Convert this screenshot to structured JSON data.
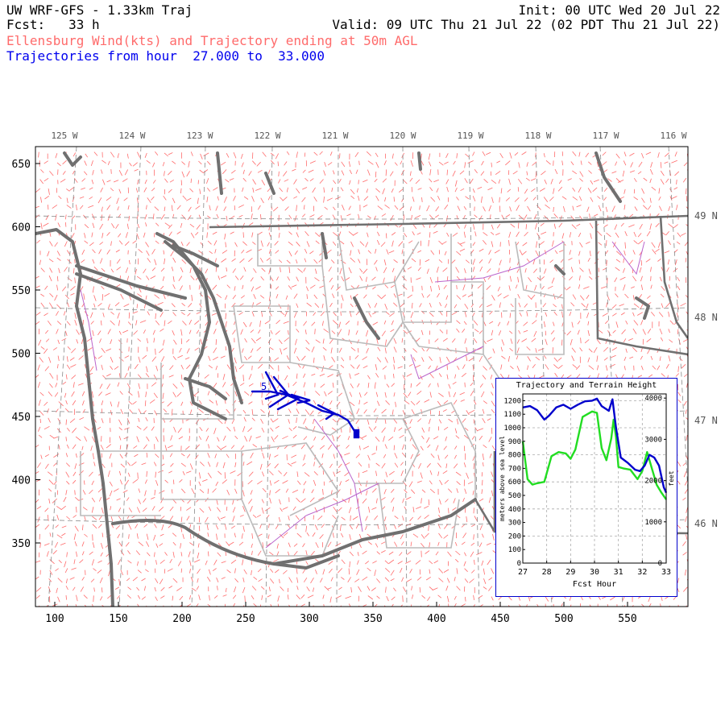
{
  "header": {
    "title": "UW WRF-GFS - 1.33km Traj",
    "init": "Init: 00 UTC Wed 20 Jul 22",
    "fcst": "Fcst:   33 h",
    "valid": "Valid: 09 UTC Thu 21 Jul 22 (02 PDT Thu 21 Jul 22)",
    "subtitle": "Ellensburg Wind(kts) and Trajectory ending at 50m AGL",
    "traj_hours": "Trajectories from hour  27.000 to  33.000"
  },
  "map": {
    "x_ticks": [
      "100",
      "150",
      "200",
      "250",
      "300",
      "350",
      "400",
      "450",
      "500",
      "550"
    ],
    "y_ticks": [
      "650",
      "600",
      "550",
      "500",
      "450",
      "400",
      "350"
    ],
    "lon_labels": [
      "125 W",
      "124 W",
      "123 W",
      "122 W",
      "121 W",
      "120 W",
      "119 W",
      "118 W",
      "117 W",
      "116 W"
    ],
    "lat_labels": [
      "49 N",
      "48 N",
      "47 N",
      "46 N"
    ],
    "traj_start_label": "5",
    "colors": {
      "wind": "#ff6b6b",
      "coast": "#707070",
      "borders": "#bbbbbb",
      "rivers": "#bb66cc",
      "trajectory": "#0000cc"
    }
  },
  "inset": {
    "title": "Trajectory and Terrain Height",
    "left_axis_label": "meters above sea level",
    "right_axis_label": "feet",
    "x_label": "Fcst Hour",
    "x_ticks": [
      "27",
      "28",
      "29",
      "30",
      "31",
      "32",
      "33"
    ],
    "y_ticks_m": [
      "1200",
      "1100",
      "1000",
      "900",
      "800",
      "700",
      "600",
      "500",
      "400",
      "300",
      "200",
      "100",
      "0"
    ],
    "y_ticks_ft": [
      "4000",
      "3000",
      "2000",
      "1000",
      "0"
    ],
    "colors": {
      "trajectory": "#0000cc",
      "terrain": "#22dd22"
    }
  },
  "chart_data": {
    "type": "line",
    "title": "Trajectory and Terrain Height",
    "xlabel": "Fcst Hour",
    "ylabel": "meters above sea level",
    "ylabel_right": "feet",
    "xlim": [
      27,
      33
    ],
    "ylim": [
      0,
      1250
    ],
    "grid": true,
    "series": [
      {
        "name": "trajectory",
        "color": "#0000cc",
        "x": [
          27.0,
          27.3,
          27.6,
          27.9,
          28.1,
          28.4,
          28.7,
          29.0,
          29.3,
          29.6,
          29.9,
          30.1,
          30.3,
          30.6,
          30.75,
          30.9,
          31.1,
          31.4,
          31.7,
          31.9,
          32.1,
          32.3,
          32.5,
          32.7,
          32.9,
          33.0
        ],
        "y": [
          1150,
          1160,
          1130,
          1060,
          1090,
          1150,
          1170,
          1140,
          1170,
          1195,
          1200,
          1215,
          1160,
          1125,
          1210,
          1000,
          780,
          740,
          690,
          680,
          720,
          800,
          780,
          720,
          560,
          520
        ]
      },
      {
        "name": "terrain",
        "color": "#22dd22",
        "x": [
          27.0,
          27.2,
          27.4,
          27.6,
          27.9,
          28.2,
          28.5,
          28.8,
          29.0,
          29.2,
          29.5,
          29.7,
          29.9,
          30.1,
          30.3,
          30.5,
          30.7,
          30.8,
          30.9,
          31.0,
          31.2,
          31.5,
          31.8,
          32.0,
          32.2,
          32.4,
          32.6,
          32.8,
          33.0
        ],
        "y": [
          900,
          620,
          580,
          590,
          600,
          790,
          820,
          810,
          770,
          840,
          1080,
          1100,
          1120,
          1110,
          850,
          760,
          920,
          1060,
          930,
          710,
          700,
          690,
          620,
          680,
          820,
          700,
          580,
          520,
          470
        ]
      }
    ]
  }
}
